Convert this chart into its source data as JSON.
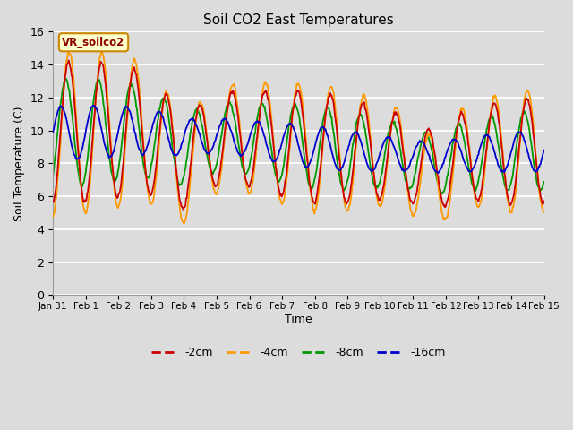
{
  "title": "Soil CO2 East Temperatures",
  "xlabel": "Time",
  "ylabel": "Soil Temperature (C)",
  "vr_label": "VR_soilco2",
  "series_labels": [
    "-2cm",
    "-4cm",
    "-8cm",
    "-16cm"
  ],
  "series_colors": [
    "#cc0000",
    "#ff9900",
    "#009900",
    "#0000cc"
  ],
  "ylim": [
    0,
    16
  ],
  "bg_color": "#dcdcdc",
  "x_tick_labels": [
    "Jan 31",
    "Feb 1",
    "Feb 2",
    "Feb 3",
    "Feb 4",
    "Feb 5",
    "Feb 6",
    "Feb 7",
    "Feb 8",
    "Feb 9",
    "Feb 10",
    "Feb 11",
    "Feb 12",
    "Feb 13",
    "Feb 14",
    "Feb 15"
  ],
  "yticks": [
    0,
    2,
    4,
    6,
    8,
    10,
    12,
    14,
    16
  ],
  "n_days": 15,
  "pts_per_day": 48
}
